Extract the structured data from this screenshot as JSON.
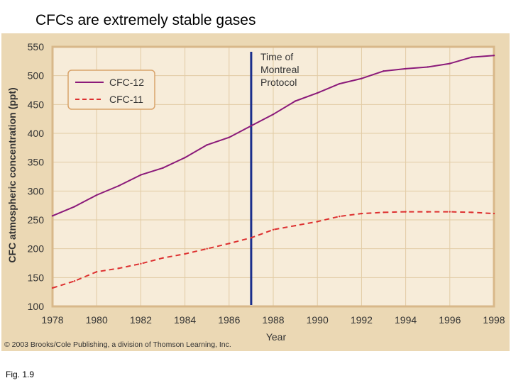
{
  "slide": {
    "title": "CFCs are extremely stable gases",
    "figure_label": "Fig. 1.9"
  },
  "chart_data": {
    "type": "line",
    "title": "",
    "xlabel": "Year",
    "ylabel": "CFC atmospheric concentration (ppt)",
    "xlim": [
      1978,
      1998
    ],
    "ylim": [
      100,
      550
    ],
    "x_ticks": [
      "1978",
      "1980",
      "1982",
      "1984",
      "1986",
      "1988",
      "1990",
      "1992",
      "1994",
      "1996",
      "1998"
    ],
    "y_ticks": [
      "100",
      "150",
      "200",
      "250",
      "300",
      "350",
      "400",
      "450",
      "500",
      "550"
    ],
    "grid": true,
    "legend_position": "top-left",
    "x": [
      1978,
      1979,
      1980,
      1981,
      1982,
      1983,
      1984,
      1985,
      1986,
      1987,
      1988,
      1989,
      1990,
      1991,
      1992,
      1993,
      1994,
      1995,
      1996,
      1997,
      1998
    ],
    "series": [
      {
        "name": "CFC-12",
        "color": "#8b1a7a",
        "style": "solid",
        "values": [
          257,
          273,
          293,
          309,
          328,
          340,
          358,
          380,
          393,
          413,
          433,
          456,
          470,
          486,
          495,
          508,
          512,
          515,
          521,
          532,
          535
        ]
      },
      {
        "name": "CFC-11",
        "color": "#dd3030",
        "style": "dashed",
        "values": [
          132,
          144,
          160,
          166,
          174,
          184,
          191,
          200,
          209,
          219,
          233,
          240,
          247,
          256,
          261,
          263,
          264,
          264,
          264,
          263,
          261
        ]
      }
    ],
    "annotations": [
      {
        "text_lines": [
          "Time of",
          "Montreal",
          "Protocol"
        ],
        "x": 1987,
        "color": "#1a2e8c"
      }
    ],
    "credit": "© 2003 Brooks/Cole Publishing, a division of Thomson Learning, Inc."
  }
}
